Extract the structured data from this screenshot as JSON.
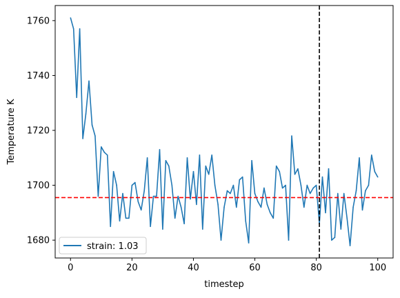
{
  "chart_data": {
    "type": "line",
    "xlabel": "timestep",
    "ylabel": "Temperature K",
    "xlim": [
      -5,
      105
    ],
    "ylim": [
      1673.5,
      1765.5
    ],
    "x_ticks": [
      0,
      20,
      40,
      60,
      80,
      100
    ],
    "y_ticks": [
      1680,
      1700,
      1720,
      1740,
      1760
    ],
    "grid": false,
    "legend_position": "lower-left",
    "series": [
      {
        "name": "strain: 1.03",
        "color": "#1f77b4",
        "x": [
          0,
          1,
          2,
          3,
          4,
          5,
          6,
          7,
          8,
          9,
          10,
          11,
          12,
          13,
          14,
          15,
          16,
          17,
          18,
          19,
          20,
          21,
          22,
          23,
          24,
          25,
          26,
          27,
          28,
          29,
          30,
          31,
          32,
          33,
          34,
          35,
          36,
          37,
          38,
          39,
          40,
          41,
          42,
          43,
          44,
          45,
          46,
          47,
          48,
          49,
          50,
          51,
          52,
          53,
          54,
          55,
          56,
          57,
          58,
          59,
          60,
          61,
          62,
          63,
          64,
          65,
          66,
          67,
          68,
          69,
          70,
          71,
          72,
          73,
          74,
          75,
          76,
          77,
          78,
          79,
          80,
          81,
          82,
          83,
          84,
          85,
          86,
          87,
          88,
          89,
          90,
          91,
          92,
          93,
          94,
          95,
          96,
          97,
          98,
          99,
          100
        ],
        "values": [
          1761,
          1757,
          1732,
          1757,
          1717,
          1726,
          1738,
          1722,
          1718,
          1696,
          1714,
          1712,
          1711,
          1685,
          1705,
          1700,
          1687,
          1697,
          1688,
          1688,
          1700,
          1701,
          1694,
          1691,
          1698,
          1710,
          1685,
          1696,
          1696,
          1713,
          1684,
          1709,
          1707,
          1700,
          1688,
          1696,
          1692,
          1686,
          1710,
          1695,
          1705,
          1693,
          1711,
          1684,
          1707,
          1704,
          1711,
          1700,
          1693,
          1680,
          1692,
          1698,
          1697,
          1700,
          1692,
          1702,
          1703,
          1687,
          1679,
          1709,
          1697,
          1694,
          1692,
          1699,
          1693,
          1690,
          1688,
          1707,
          1705,
          1699,
          1700,
          1680,
          1718,
          1704,
          1706,
          1700,
          1692,
          1700,
          1697,
          1699,
          1700,
          1686,
          1703,
          1690,
          1706,
          1680,
          1681,
          1697,
          1684,
          1697,
          1688,
          1678,
          1692,
          1698,
          1710,
          1691,
          1698,
          1700,
          1711,
          1705,
          1703
        ]
      }
    ],
    "reference_lines": [
      {
        "orientation": "horizontal",
        "value": 1695.5,
        "color": "#ff0000",
        "style": "dashed"
      },
      {
        "orientation": "vertical",
        "value": 81,
        "color": "#000000",
        "style": "dashed"
      }
    ]
  }
}
